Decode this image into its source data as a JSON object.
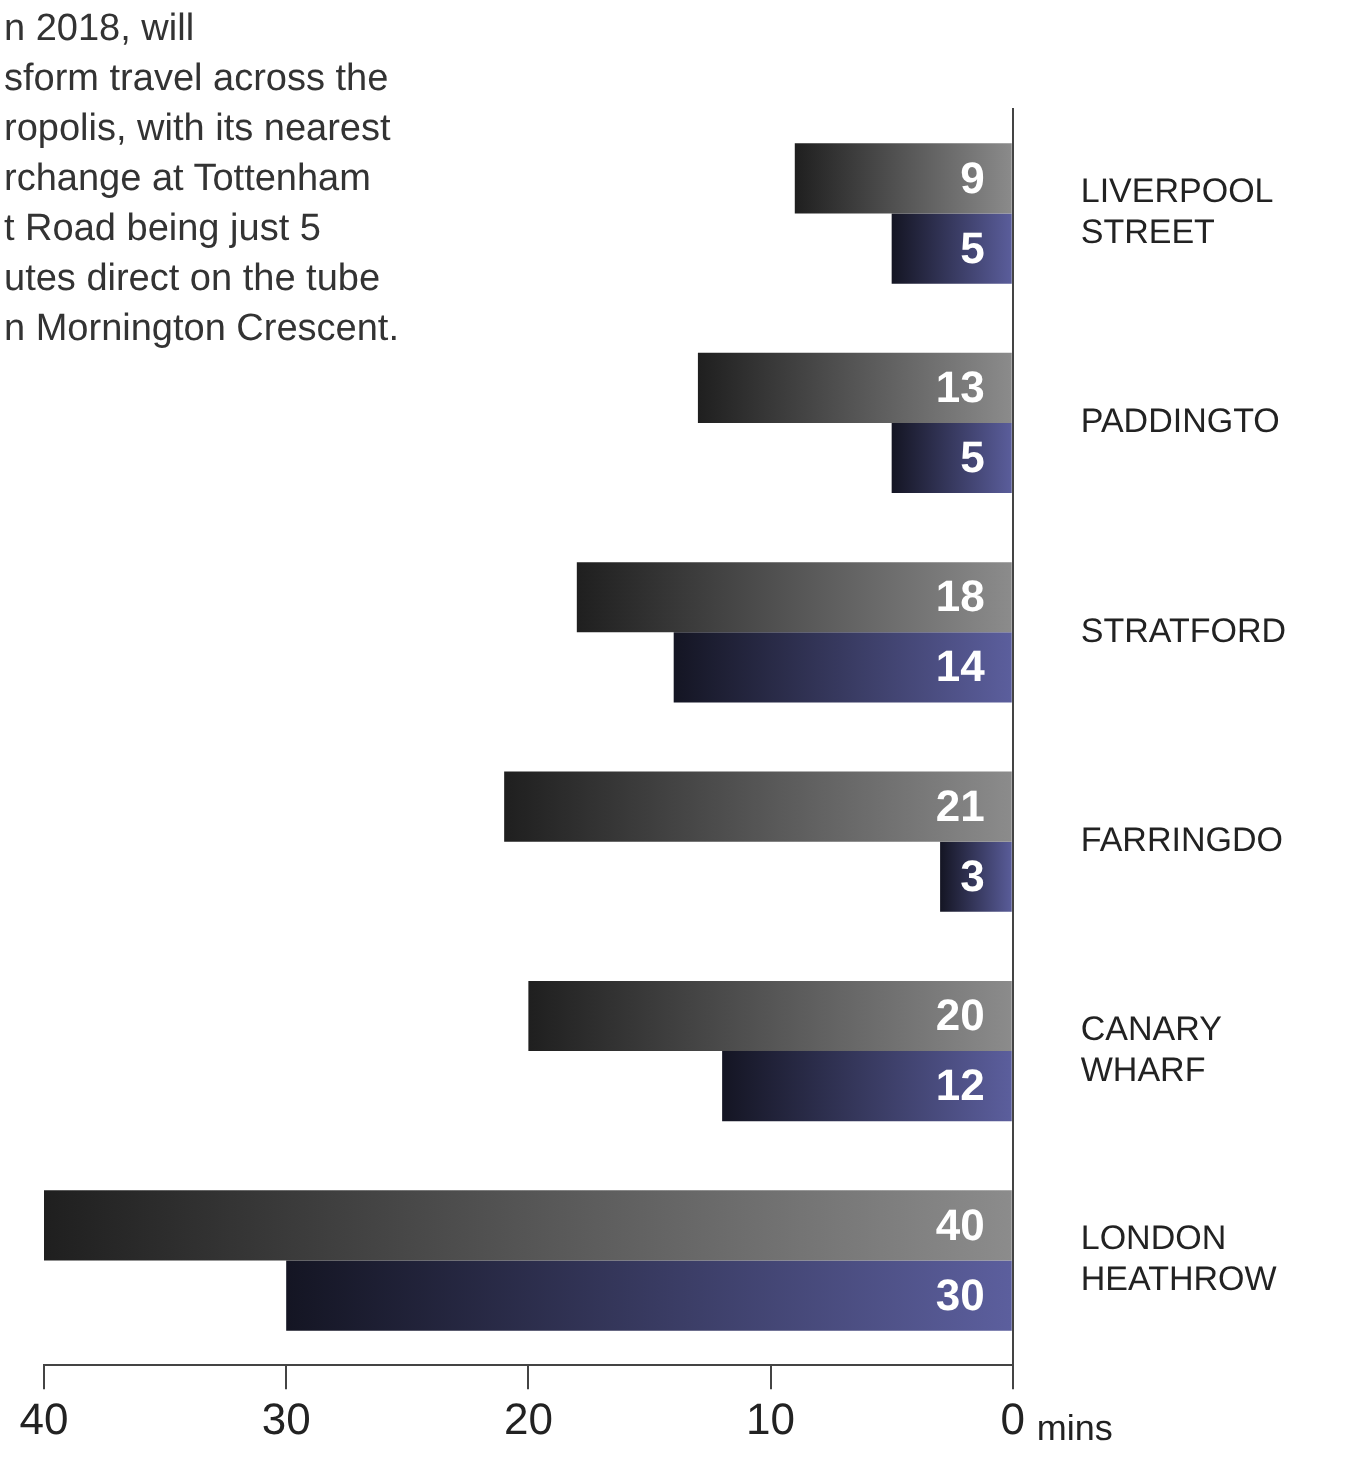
{
  "chart_data": {
    "type": "bar",
    "orientation": "horizontal",
    "categories": [
      "LIVERPOOL STREET",
      "PADDINGTO",
      "STRATFORD",
      "FARRINGDO",
      "CANARY WHARF",
      "LONDON HEATHROW"
    ],
    "series": [
      {
        "color": "#8c8c8c",
        "values": [
          9,
          13,
          18,
          21,
          20,
          40
        ]
      },
      {
        "color": "#5c5f9e",
        "values": [
          5,
          5,
          14,
          3,
          12,
          30
        ]
      }
    ],
    "xlim": [
      40,
      0
    ],
    "xticks": [
      40,
      30,
      20,
      10,
      0
    ],
    "xlabel": "mins",
    "data_labels": true,
    "grid": false,
    "legend": false,
    "annotations": [
      "n 2018, will\nsform travel across the\nropolis, with its nearest\nrchange at Tottenham\nt Road being just 5\nutes direct on the tube\nn Mornington Crescent."
    ]
  }
}
